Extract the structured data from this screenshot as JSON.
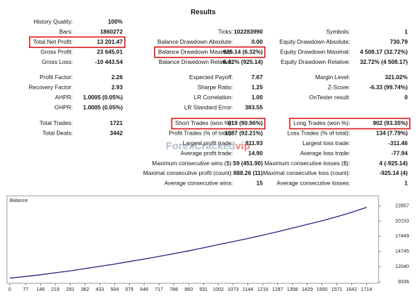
{
  "results": {
    "title": "Results",
    "groups": [
      [
        [
          {
            "label": "History Quality:",
            "value": "100%"
          },
          null,
          null
        ],
        [
          {
            "label": "Bars:",
            "value": "1860272"
          },
          {
            "label": "Ticks:",
            "value": "102283990"
          },
          {
            "label": "Symbols:",
            "value": "1"
          }
        ],
        [
          {
            "label": "Total Net Profit:",
            "value": "13 201.47",
            "highlight": true
          },
          {
            "label": "Balance Drawdown Absolute:",
            "value": "0.00"
          },
          {
            "label": "Equity Drawdown Absolute:",
            "value": "730.79"
          }
        ],
        [
          {
            "label": "Gross Profit:",
            "value": "23 645.01"
          },
          {
            "label": "Balance Drawdown Maximal:",
            "value": "925.14 (6.32%)",
            "highlight": true
          },
          {
            "label": "Equity Drawdown Maximal:",
            "value": "4 508.17 (32.72%)"
          }
        ],
        [
          {
            "label": "Gross Loss:",
            "value": "-10 443.54"
          },
          {
            "label": "Balance Drawdown Relative:",
            "value": "6.32% (925.14)"
          },
          {
            "label": "Equity Drawdown Relative:",
            "value": "32.72% (4 508.17)"
          }
        ]
      ],
      [
        [
          {
            "label": "Profit Factor:",
            "value": "2.26"
          },
          {
            "label": "Expected Payoff:",
            "value": "7.67"
          },
          {
            "label": "Margin Level:",
            "value": "321.02%"
          }
        ],
        [
          {
            "label": "Recovery Factor:",
            "value": "2.93"
          },
          {
            "label": "Sharpe Ratio:",
            "value": "1.25"
          },
          {
            "label": "Z-Score:",
            "value": "-6.33 (99.74%)"
          }
        ],
        [
          {
            "label": "AHPR:",
            "value": "1.0005 (0.05%)"
          },
          {
            "label": "LR Correlation:",
            "value": "1.00"
          },
          {
            "label": "OnTester result:",
            "value": "0"
          }
        ],
        [
          {
            "label": "GHPR:",
            "value": "1.0005 (0.05%)"
          },
          {
            "label": "LR Standard Error:",
            "value": "383.55"
          },
          null
        ]
      ],
      [
        [
          {
            "label": "Total Trades:",
            "value": "1721"
          },
          {
            "label": "Short Trades (won %):",
            "value": "819 (90.96%)",
            "highlight": true
          },
          {
            "label": "Long Trades (won %):",
            "value": "902 (93.35%)",
            "highlight": true
          }
        ],
        [
          {
            "label": "Total Deals:",
            "value": "3442"
          },
          {
            "label": "Profit Trades (% of total):",
            "value": "1587 (92.21%)"
          },
          {
            "label": "Loss Trades (% of total):",
            "value": "134 (7.79%)"
          }
        ],
        [
          null,
          {
            "label": "Largest profit trade:",
            "value": "811.93"
          },
          {
            "label": "Largest loss trade:",
            "value": "-311.46"
          }
        ],
        [
          null,
          {
            "label": "Average profit trade:",
            "value": "14.90"
          },
          {
            "label": "Average loss trade:",
            "value": "-77.94"
          }
        ],
        [
          null,
          {
            "label": "Maximum consecutive wins ($):",
            "value": "59 (451.90)"
          },
          {
            "label": "Maximum consecutive losses ($):",
            "value": "4 (-925.14)"
          }
        ],
        [
          null,
          {
            "label": "Maximal consecutive profit (count):",
            "value": "888.26 (11)"
          },
          {
            "label": "Maximal consecutive loss (count):",
            "value": "-925.14 (4)"
          }
        ],
        [
          null,
          {
            "label": "Average consecutive wins:",
            "value": "15"
          },
          {
            "label": "Average consecutive losses:",
            "value": "1"
          }
        ]
      ]
    ],
    "watermark": {
      "main": "ForexCracked",
      "suffix": "vip"
    }
  },
  "chart_data": {
    "type": "line",
    "title": "Balance",
    "x": [
      0,
      77,
      148,
      219,
      291,
      362,
      433,
      504,
      575,
      646,
      717,
      788,
      860,
      931,
      1002,
      1073,
      1144,
      1216,
      1287,
      1358,
      1429,
      1500,
      1571,
      1642,
      1714
    ],
    "series": [
      {
        "name": "Balance",
        "color": "#20207a",
        "values": [
          10000,
          10300,
          10600,
          10950,
          11300,
          11700,
          12100,
          12500,
          12950,
          13400,
          13850,
          14350,
          14850,
          15400,
          15950,
          16500,
          17050,
          17650,
          18250,
          18900,
          19550,
          20200,
          20900,
          21700,
          22600
        ]
      }
    ],
    "xlim": [
      0,
      1765
    ],
    "xticks": [
      0,
      77,
      148,
      219,
      291,
      362,
      433,
      504,
      575,
      646,
      717,
      788,
      860,
      931,
      1002,
      1073,
      1144,
      1216,
      1287,
      1358,
      1429,
      1500,
      1571,
      1642,
      1714
    ],
    "ylim": [
      9336,
      24400
    ],
    "yticks": [
      9336,
      12040,
      14745,
      17449,
      20153,
      22857
    ]
  }
}
